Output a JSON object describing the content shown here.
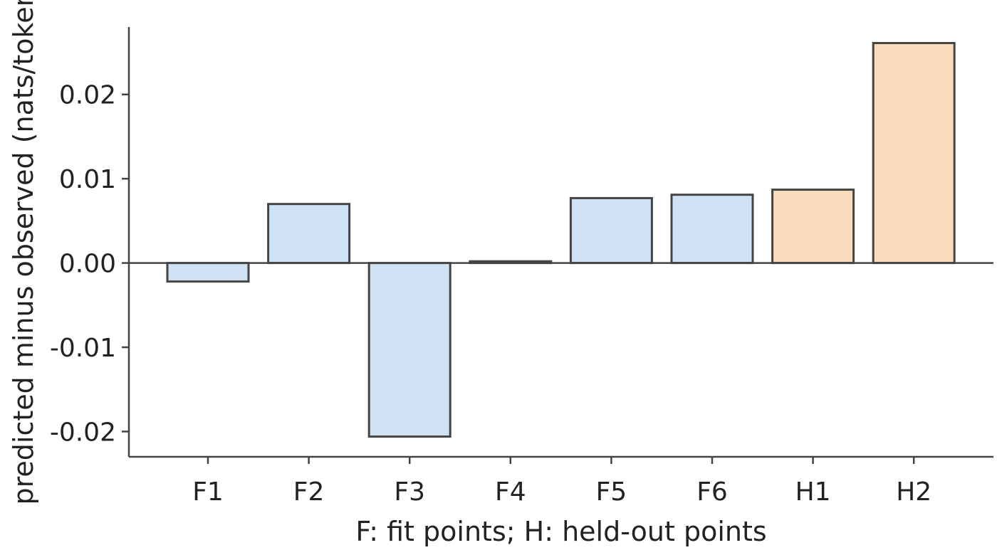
{
  "chart_data": {
    "type": "bar",
    "categories": [
      "F1",
      "F2",
      "F3",
      "F4",
      "F5",
      "F6",
      "H1",
      "H2"
    ],
    "values": [
      -0.0022,
      0.007,
      -0.0206,
      0.0002,
      0.0077,
      0.0081,
      0.0087,
      0.0261
    ],
    "groups": [
      "fit",
      "fit",
      "fit",
      "fit",
      "fit",
      "fit",
      "held-out",
      "held-out"
    ],
    "colors": {
      "fit": "#cfe2f3",
      "held-out": "#f8dcbc",
      "edge": "#444444"
    },
    "ylim": [
      -0.023,
      0.028
    ],
    "yticks": [
      -0.02,
      -0.01,
      0.0,
      0.01,
      0.02
    ],
    "ytick_labels": [
      "-0.02",
      "-0.01",
      "0.00",
      "0.01",
      "0.02"
    ],
    "xlabel": "F: fit points; H: held-out points",
    "ylabel": "predicted minus observed (nats/token)",
    "grid": false
  }
}
